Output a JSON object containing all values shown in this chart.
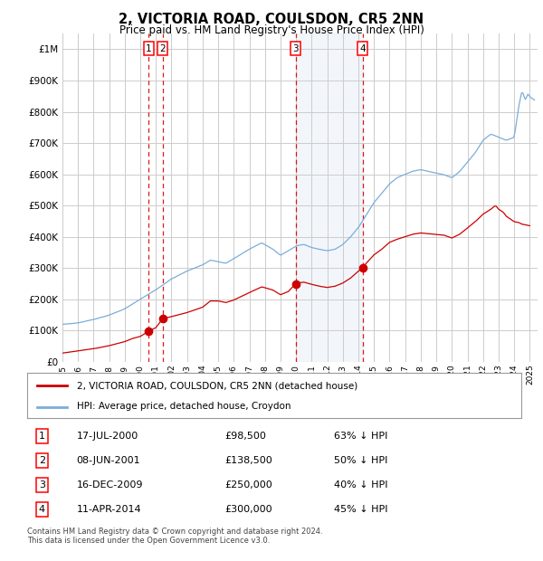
{
  "title": "2, VICTORIA ROAD, COULSDON, CR5 2NN",
  "subtitle": "Price paid vs. HM Land Registry's House Price Index (HPI)",
  "ylim": [
    0,
    1050000
  ],
  "yticks": [
    0,
    100000,
    200000,
    300000,
    400000,
    500000,
    600000,
    700000,
    800000,
    900000,
    1000000
  ],
  "ytick_labels": [
    "£0",
    "£100K",
    "£200K",
    "£300K",
    "£400K",
    "£500K",
    "£600K",
    "£700K",
    "£800K",
    "£900K",
    "£1M"
  ],
  "hpi_color": "#7aadda",
  "sale_color": "#cc0000",
  "bg_color": "#ffffff",
  "grid_color": "#cccccc",
  "transactions": [
    {
      "id": 1,
      "date_num": 2000.54,
      "price": 98500,
      "label": "1",
      "date_str": "17-JUL-2000",
      "pct": "63% ↓ HPI"
    },
    {
      "id": 2,
      "date_num": 2001.44,
      "price": 138500,
      "label": "2",
      "date_str": "08-JUN-2001",
      "pct": "50% ↓ HPI"
    },
    {
      "id": 3,
      "date_num": 2009.96,
      "price": 250000,
      "label": "3",
      "date_str": "16-DEC-2009",
      "pct": "40% ↓ HPI"
    },
    {
      "id": 4,
      "date_num": 2014.28,
      "price": 300000,
      "label": "4",
      "date_str": "11-APR-2014",
      "pct": "45% ↓ HPI"
    }
  ],
  "legend_sale_label": "2, VICTORIA ROAD, COULSDON, CR5 2NN (detached house)",
  "legend_hpi_label": "HPI: Average price, detached house, Croydon",
  "footnote": "Contains HM Land Registry data © Crown copyright and database right 2024.\nThis data is licensed under the Open Government Licence v3.0.",
  "xlim_start": 1995.0,
  "xlim_end": 2025.5,
  "xtick_years": [
    1995,
    1996,
    1997,
    1998,
    1999,
    2000,
    2001,
    2002,
    2003,
    2004,
    2005,
    2006,
    2007,
    2008,
    2009,
    2010,
    2011,
    2012,
    2013,
    2014,
    2015,
    2016,
    2017,
    2018,
    2019,
    2020,
    2021,
    2022,
    2023,
    2024,
    2025
  ]
}
